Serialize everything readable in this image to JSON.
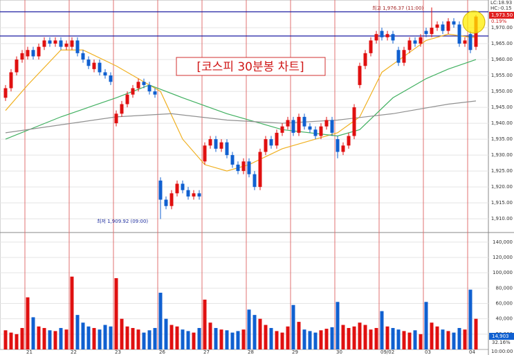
{
  "chart_data": {
    "type": "candlestick",
    "title": "[코스피 30분봉 차트]",
    "categories": [
      null,
      null,
      null,
      null,
      "21",
      null,
      null,
      null,
      null,
      null,
      null,
      null,
      "22",
      null,
      null,
      null,
      null,
      null,
      null,
      null,
      "23",
      null,
      null,
      null,
      null,
      null,
      null,
      null,
      "26",
      null,
      null,
      null,
      null,
      null,
      null,
      null,
      "27",
      null,
      null,
      null,
      null,
      null,
      null,
      null,
      "28",
      null,
      null,
      null,
      null,
      null,
      null,
      null,
      "29",
      null,
      null,
      null,
      null,
      null,
      null,
      null,
      "30",
      null,
      null,
      null,
      null,
      null,
      null,
      null,
      "09/02",
      null,
      null,
      null,
      null,
      null,
      null,
      null,
      "03",
      null,
      null,
      null,
      null,
      null,
      null,
      null,
      "04",
      null
    ],
    "open": [
      1948,
      1951,
      1956,
      1960,
      1961,
      1963,
      1961,
      1964,
      1966,
      1965,
      1966,
      1964,
      1964,
      1966,
      1962,
      1960,
      1957,
      1959,
      1956,
      1955,
      1940,
      1943,
      1946,
      1949,
      1951,
      1953,
      1952,
      1950,
      1922,
      1916,
      1914,
      1918,
      1921,
      1919,
      1917,
      1918,
      1928,
      1933,
      1935,
      1932,
      1934,
      1930,
      1927,
      1925,
      1928,
      1924,
      1920,
      1931,
      1935,
      1933,
      1937,
      1939,
      1941,
      1937,
      1942,
      1939,
      1938,
      1936,
      1939,
      1941,
      1935,
      1931,
      1933,
      1936,
      1952,
      1958,
      1962,
      1966,
      1969,
      1967,
      1968,
      1963,
      1959,
      1963,
      1966,
      1965,
      1969,
      1968,
      1970,
      1971,
      1969,
      1972,
      1971,
      1965,
      1968,
      1964
    ],
    "high": [
      1952,
      1957,
      1961,
      1963,
      1964,
      1964,
      1965,
      1967,
      1967,
      1967,
      1967,
      1966,
      1967,
      1967,
      1963,
      1961,
      1960,
      1960,
      1957,
      1956,
      1944,
      1947,
      1950,
      1952,
      1954,
      1954,
      1953,
      1951,
      1923,
      1917,
      1919,
      1922,
      1922,
      1920,
      1919,
      1919,
      1934,
      1936,
      1936,
      1935,
      1935,
      1931,
      1928,
      1929,
      1929,
      1925,
      1932,
      1936,
      1936,
      1938,
      1940,
      1942,
      1942,
      1943,
      1943,
      1940,
      1939,
      1940,
      1942,
      1942,
      1936,
      1934,
      1937,
      1946,
      1959,
      1963,
      1967,
      1969,
      1970,
      1969,
      1969,
      1964,
      1964,
      1967,
      1967,
      1968,
      1970,
      1976.37,
      1972,
      1972,
      1973,
      1973,
      1972,
      1967,
      1969,
      1974
    ],
    "low": [
      1947,
      1950,
      1955,
      1959,
      1960,
      1960,
      1960,
      1963,
      1964,
      1964,
      1963,
      1963,
      1963,
      1961,
      1959,
      1957,
      1956,
      1955,
      1954,
      1952,
      1939,
      1942,
      1945,
      1948,
      1950,
      1951,
      1949,
      1948,
      1909.92,
      1913,
      1913,
      1917,
      1918,
      1916,
      1916,
      1916,
      1927,
      1932,
      1931,
      1931,
      1929,
      1926,
      1924,
      1924,
      1923,
      1919,
      1919,
      1930,
      1932,
      1932,
      1936,
      1938,
      1936,
      1936,
      1938,
      1937,
      1935,
      1935,
      1938,
      1936,
      1929,
      1930,
      1932,
      1935,
      1951,
      1957,
      1961,
      1965,
      1966,
      1966,
      1965,
      1958,
      1958,
      1962,
      1964,
      1964,
      1967,
      1967,
      1969,
      1968,
      1968,
      1970,
      1964,
      1964,
      1962,
      1963
    ],
    "close": [
      1951,
      1956,
      1960,
      1962,
      1963,
      1961,
      1964,
      1966,
      1965,
      1966,
      1964,
      1965,
      1966,
      1962,
      1960,
      1958,
      1959,
      1956,
      1955,
      1953,
      1943,
      1946,
      1949,
      1951,
      1953,
      1952,
      1950,
      1949,
      1916,
      1914,
      1918,
      1921,
      1919,
      1917,
      1918,
      1917,
      1933,
      1935,
      1932,
      1934,
      1930,
      1927,
      1925,
      1928,
      1924,
      1920,
      1931,
      1935,
      1933,
      1937,
      1939,
      1941,
      1937,
      1942,
      1939,
      1938,
      1936,
      1939,
      1941,
      1937,
      1931,
      1933,
      1936,
      1945,
      1958,
      1962,
      1966,
      1968,
      1967,
      1968,
      1966,
      1959,
      1963,
      1966,
      1965,
      1967,
      1968,
      1970,
      1971,
      1969,
      1972,
      1971,
      1965,
      1966,
      1963,
      1973.5
    ],
    "volume": [
      25000,
      22000,
      20000,
      28000,
      68000,
      42000,
      30000,
      28000,
      25000,
      24000,
      28000,
      26000,
      95000,
      45000,
      35000,
      30000,
      28000,
      26000,
      32000,
      30000,
      93000,
      40000,
      30000,
      28000,
      26000,
      22000,
      25000,
      28000,
      74000,
      40000,
      32000,
      30000,
      26000,
      24000,
      22000,
      28000,
      65000,
      35000,
      28000,
      26000,
      25000,
      22000,
      24000,
      26000,
      52000,
      45000,
      40000,
      32000,
      28000,
      24000,
      22000,
      30000,
      58000,
      36000,
      26000,
      24000,
      22000,
      25000,
      27000,
      29000,
      62000,
      32000,
      28000,
      30000,
      35000,
      32000,
      26000,
      28000,
      50000,
      30000,
      28000,
      26000,
      24000,
      22000,
      25000,
      20000,
      62000,
      35000,
      30000,
      26000,
      24000,
      22000,
      28000,
      26000,
      78000,
      40000
    ],
    "up_color": "#e01010",
    "down_color": "#1060d0",
    "moving_averages": [
      {
        "color": "#f0b020",
        "x": [
          0,
          4,
          10,
          14,
          20,
          26,
          28,
          32,
          36,
          40,
          44,
          50,
          56,
          60,
          64,
          68,
          72,
          76,
          80,
          84,
          85
        ],
        "values": [
          1944,
          1952,
          1963,
          1963,
          1958,
          1952,
          1950,
          1935,
          1927,
          1925,
          1927,
          1932,
          1935,
          1937,
          1942,
          1956,
          1961,
          1966,
          1968,
          1967,
          1967
        ]
      },
      {
        "color": "#40b060",
        "x": [
          0,
          10,
          20,
          26,
          32,
          40,
          50,
          60,
          64,
          70,
          76,
          80,
          85
        ],
        "values": [
          1935,
          1942,
          1948,
          1952,
          1948,
          1943,
          1938,
          1936,
          1938,
          1948,
          1954,
          1957,
          1960
        ]
      },
      {
        "color": "#909090",
        "x": [
          0,
          20,
          30,
          40,
          50,
          60,
          70,
          80,
          85
        ],
        "values": [
          1937,
          1942,
          1943,
          1941,
          1940,
          1941,
          1943,
          1946,
          1947
        ]
      }
    ],
    "reference_lines": [
      1975,
      1967.4
    ],
    "ylim": [
      1905.9,
      1978.7
    ],
    "yticks": [
      {
        "value": 1910,
        "label": "1,910.00"
      },
      {
        "value": 1915,
        "label": "1,915.00"
      },
      {
        "value": 1920,
        "label": "1,920.00"
      },
      {
        "value": 1925,
        "label": "1,925.00"
      },
      {
        "value": 1930,
        "label": "1,930.00"
      },
      {
        "value": 1935,
        "label": "1,935.00"
      },
      {
        "value": 1940,
        "label": "1,940.00"
      },
      {
        "value": 1945,
        "label": "1,945.00"
      },
      {
        "value": 1950,
        "label": "1,950.00"
      },
      {
        "value": 1955,
        "label": "1,955.00"
      },
      {
        "value": 1960,
        "label": "1,960.00"
      },
      {
        "value": 1965,
        "label": "1,965.00"
      },
      {
        "value": 1970,
        "label": "1,970.00"
      }
    ],
    "y2lim": [
      0,
      150700
    ],
    "y2ticks": [
      {
        "value": 20000,
        "label": "20,000"
      },
      {
        "value": 40000,
        "label": "40,000"
      },
      {
        "value": 60000,
        "label": "60,000"
      },
      {
        "value": 80000,
        "label": "80,000"
      },
      {
        "value": 100000,
        "label": "100,000"
      },
      {
        "value": 120000,
        "label": "120,000"
      },
      {
        "value": 140000,
        "label": "140,000"
      }
    ],
    "high_note": "최고 1,976.37 (11:00)",
    "low_note": "최저 1,909.92 (09:00)",
    "top_right": [
      "LC:18.93",
      "HC:-0.15"
    ],
    "last_price": "1,973.50",
    "change": "0.19%",
    "last_volume": "14,903",
    "volume_ratio": "32.16%",
    "time": "10:00:00"
  }
}
